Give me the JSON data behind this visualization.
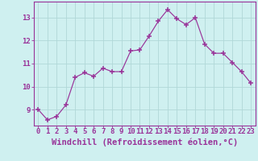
{
  "x": [
    0,
    1,
    2,
    3,
    4,
    5,
    6,
    7,
    8,
    9,
    10,
    11,
    12,
    13,
    14,
    15,
    16,
    17,
    18,
    19,
    20,
    21,
    22,
    23
  ],
  "y": [
    9.0,
    8.55,
    8.7,
    9.2,
    10.4,
    10.6,
    10.45,
    10.8,
    10.65,
    10.65,
    11.55,
    11.6,
    12.2,
    12.85,
    13.35,
    12.95,
    12.7,
    13.0,
    11.85,
    11.45,
    11.45,
    11.05,
    10.65,
    10.15
  ],
  "line_color": "#993399",
  "marker": "+",
  "marker_size": 4,
  "bg_color": "#cff0f0",
  "grid_color": "#b0d8d8",
  "xlabel": "Windchill (Refroidissement éolien,°C)",
  "xlabel_color": "#993399",
  "tick_color": "#993399",
  "ylim": [
    8.3,
    13.7
  ],
  "xlim": [
    -0.5,
    23.5
  ],
  "yticks": [
    9,
    10,
    11,
    12,
    13
  ],
  "xticks": [
    0,
    1,
    2,
    3,
    4,
    5,
    6,
    7,
    8,
    9,
    10,
    11,
    12,
    13,
    14,
    15,
    16,
    17,
    18,
    19,
    20,
    21,
    22,
    23
  ],
  "spine_color": "#993399",
  "label_fontsize": 7.5,
  "tick_fontsize": 6.5
}
